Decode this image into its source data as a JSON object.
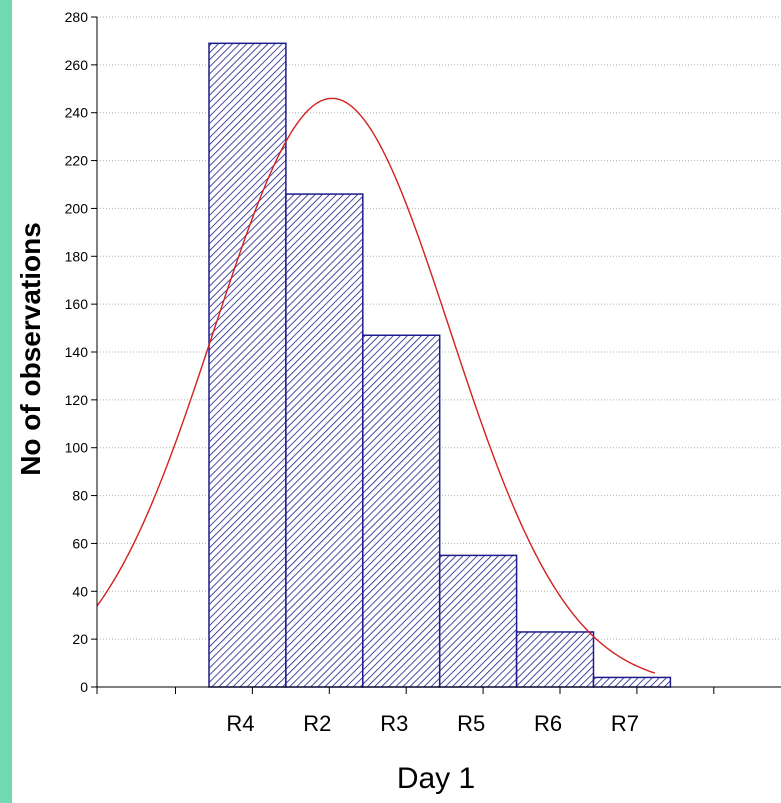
{
  "chart_data": {
    "type": "bar",
    "title": "",
    "xlabel": "Day 1",
    "ylabel": "No of observations",
    "categories": [
      "R4",
      "R2",
      "R3",
      "R5",
      "R6",
      "R7"
    ],
    "values": [
      269,
      206,
      147,
      55,
      23,
      4
    ],
    "ylim": [
      0,
      280
    ],
    "yticks": [
      0,
      20,
      40,
      60,
      80,
      100,
      120,
      140,
      160,
      180,
      200,
      220,
      240,
      260,
      280
    ],
    "grid": true,
    "bar_fill": "hatched",
    "colors": {
      "bar_stroke": "#1c1c8c",
      "bar_hatch": "#1c1c8c",
      "curve": "#d42020",
      "grid": "#b0b0b0",
      "left_border": "#6fdab1"
    },
    "fit_curve": {
      "type": "normal",
      "peak": 246,
      "peak_position": "between R4 and R2"
    }
  }
}
